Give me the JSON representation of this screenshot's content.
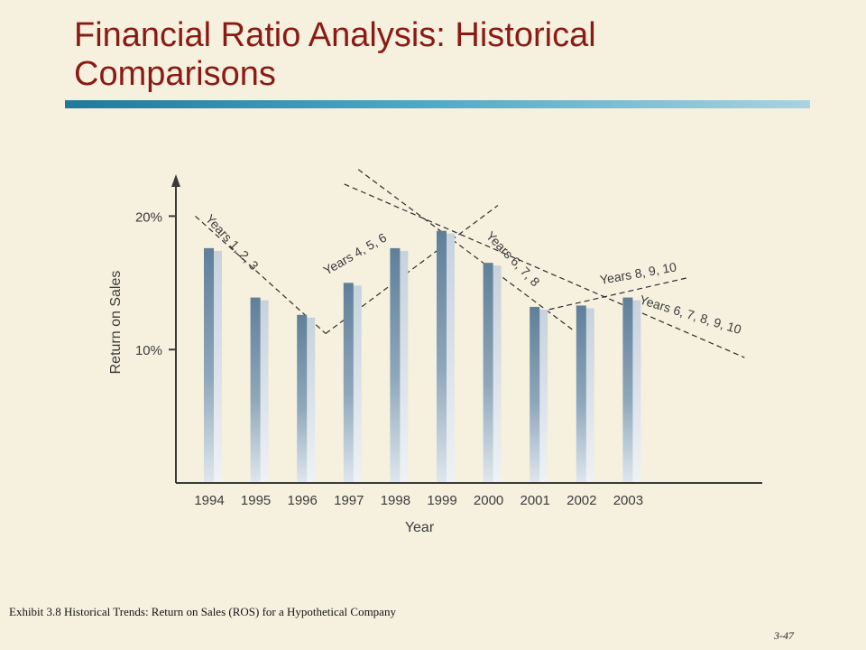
{
  "slide": {
    "title": "Financial Ratio Analysis: Historical Comparisons",
    "caption": "Exhibit 3.8 Historical Trends: Return on Sales (ROS) for a Hypothetical Company",
    "page_number": "3-47",
    "title_color": "#8b1a14",
    "accent_color": "#1f7a9a"
  },
  "chart_data": {
    "type": "bar",
    "categories": [
      "1994",
      "1995",
      "1996",
      "1997",
      "1998",
      "1999",
      "2000",
      "2001",
      "2002",
      "2003"
    ],
    "values": [
      17.6,
      13.9,
      12.6,
      15.0,
      17.6,
      18.9,
      16.5,
      13.2,
      13.3,
      13.9
    ],
    "xlabel": "Year",
    "ylabel": "Return on Sales",
    "yticks": [
      {
        "value": 10,
        "label": "10%"
      },
      {
        "value": 20,
        "label": "20%"
      }
    ],
    "ylim": [
      0,
      22
    ],
    "bar_color": "#5f7f99",
    "trend_lines": [
      {
        "label": "Years 1, 2, 3",
        "from": [
          "1993.7",
          20.0
        ],
        "to": [
          "1996.5",
          11.2
        ]
      },
      {
        "label": "Years 4, 5, 6",
        "from": [
          "1996.5",
          11.2
        ],
        "to": [
          "1999.2",
          18.2
        ]
      },
      {
        "label": "Years 4, 5, 6",
        "from": [
          "1999.2",
          18.2
        ],
        "to": [
          "2000.2",
          20.8
        ]
      },
      {
        "label": "Years 6, 7, 8",
        "from": [
          "1997.2",
          23.5
        ],
        "to": [
          "2001.8",
          11.5
        ]
      },
      {
        "label": "Years 8, 9, 10",
        "from": [
          "2001.3",
          13.0
        ],
        "to": [
          "2004.3",
          15.4
        ]
      },
      {
        "label": "Years 6, 7, 8, 9, 10",
        "from": [
          "1996.9",
          22.4
        ],
        "to": [
          "2005.5",
          9.4
        ]
      }
    ],
    "annotations": [
      "Years 1, 2, 3",
      "Years 4, 5, 6",
      "Years 6, 7, 8",
      "Years 8, 9, 10",
      "Years 6, 7, 8, 9, 10"
    ],
    "grid": false,
    "legend": "none"
  }
}
